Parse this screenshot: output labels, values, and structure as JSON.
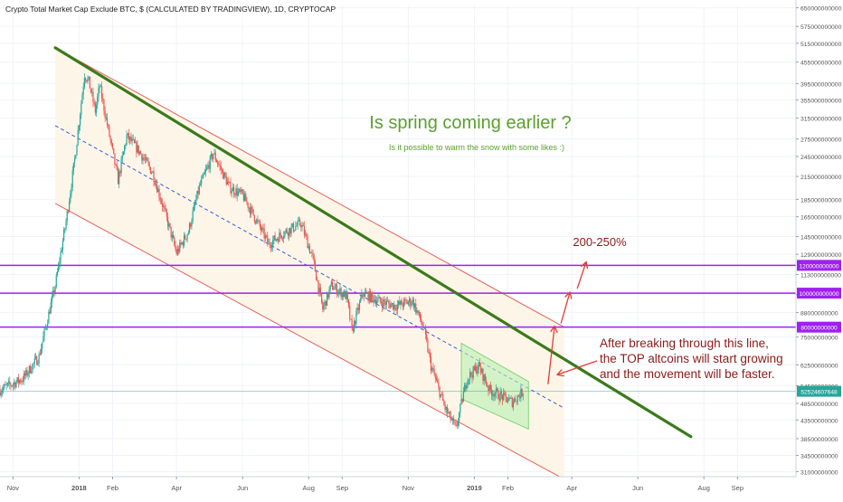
{
  "header": {
    "symbol_title": "Crypto Total Market Cap Exclude BTC, $ (CALCULATED BY TRADINGVIEW), 1D, CRYPTOCAP"
  },
  "annotations": {
    "headline": "Is spring coming earlier ?",
    "subline": "Is it possible to warm the snow with some likes :)",
    "target": "200-250%",
    "note_lines": [
      "After breaking through this line,",
      "the TOP altcoins will start growing",
      "and the movement will be faster."
    ]
  },
  "colors": {
    "up": "#26a69a",
    "down": "#ef5350",
    "trendline": "#3b7a1a",
    "level": "#a020f0",
    "channel": "#e8605b",
    "channel_fill": "#fdf5e4",
    "midline": "#3a5bd8",
    "headline": "#5aa02c",
    "note": "#8b1a1a",
    "arrow": "#e53935",
    "box_fill": "#b9f0b0",
    "price_badge": "#26a69a"
  },
  "chart_data": {
    "type": "candlestick",
    "y_scale": "log",
    "ylim": [
      30000000000,
      660000000000
    ],
    "y_ticks": [
      {
        "value": 650000000000,
        "label": "650000000000"
      },
      {
        "value": 575000000000,
        "label": "575000000000"
      },
      {
        "value": 515000000000,
        "label": "515000000000"
      },
      {
        "value": 455000000000,
        "label": "455000000000"
      },
      {
        "value": 395000000000,
        "label": "395000000000"
      },
      {
        "value": 355000000000,
        "label": "355000000000"
      },
      {
        "value": 315000000000,
        "label": "315000000000"
      },
      {
        "value": 275000000000,
        "label": "275000000000"
      },
      {
        "value": 245000000000,
        "label": "245000000000"
      },
      {
        "value": 215000000000,
        "label": "215000000000"
      },
      {
        "value": 185000000000,
        "label": "185000000000"
      },
      {
        "value": 165000000000,
        "label": "165000000000"
      },
      {
        "value": 145000000000,
        "label": "145000000000"
      },
      {
        "value": 129000000000,
        "label": "129000000000"
      },
      {
        "value": 113000000000,
        "label": "113000000000"
      },
      {
        "value": 99000000000,
        "label": "99000000000"
      },
      {
        "value": 88000000000,
        "label": "88000000000"
      },
      {
        "value": 75000000000,
        "label": "75000000000"
      },
      {
        "value": 62500000000,
        "label": "62500000000"
      },
      {
        "value": 54500000000,
        "label": "54500000000"
      },
      {
        "value": 48500000000,
        "label": "48500000000"
      },
      {
        "value": 43500000000,
        "label": "43500000000"
      },
      {
        "value": 38500000000,
        "label": "38500000000"
      },
      {
        "value": 34500000000,
        "label": "34500000000"
      },
      {
        "value": 31000000000,
        "label": "31000000000"
      }
    ],
    "x_ticks": [
      {
        "date": "2017-11-01",
        "label": "Nov"
      },
      {
        "date": "2018-01-01",
        "label": "2018"
      },
      {
        "date": "2018-02-01",
        "label": "Feb"
      },
      {
        "date": "2018-04-01",
        "label": "Apr"
      },
      {
        "date": "2018-06-01",
        "label": "Jun"
      },
      {
        "date": "2018-08-01",
        "label": "Aug"
      },
      {
        "date": "2018-09-01",
        "label": "Sep"
      },
      {
        "date": "2018-11-01",
        "label": "Nov"
      },
      {
        "date": "2019-01-01",
        "label": "2019"
      },
      {
        "date": "2019-02-01",
        "label": "Feb"
      },
      {
        "date": "2019-04-01",
        "label": "Apr"
      },
      {
        "date": "2019-06-01",
        "label": "Jun"
      },
      {
        "date": "2019-08-01",
        "label": "Aug"
      },
      {
        "date": "2019-09-01",
        "label": "Sep"
      }
    ],
    "xlim": [
      "2017-10-20",
      "2019-10-25"
    ],
    "price_path": [
      [
        "2017-10-20",
        53000000000
      ],
      [
        "2017-11-10",
        57000000000
      ],
      [
        "2017-11-25",
        66000000000
      ],
      [
        "2017-12-10",
        105000000000
      ],
      [
        "2017-12-20",
        160000000000
      ],
      [
        "2017-12-28",
        240000000000
      ],
      [
        "2018-01-06",
        420000000000
      ],
      [
        "2018-01-10",
        400000000000
      ],
      [
        "2018-01-16",
        330000000000
      ],
      [
        "2018-01-20",
        390000000000
      ],
      [
        "2018-02-06",
        210000000000
      ],
      [
        "2018-02-14",
        280000000000
      ],
      [
        "2018-02-25",
        255000000000
      ],
      [
        "2018-03-10",
        220000000000
      ],
      [
        "2018-03-20",
        175000000000
      ],
      [
        "2018-04-01",
        130000000000
      ],
      [
        "2018-04-12",
        150000000000
      ],
      [
        "2018-04-22",
        200000000000
      ],
      [
        "2018-05-05",
        250000000000
      ],
      [
        "2018-05-20",
        200000000000
      ],
      [
        "2018-06-01",
        190000000000
      ],
      [
        "2018-06-12",
        165000000000
      ],
      [
        "2018-06-25",
        138000000000
      ],
      [
        "2018-07-08",
        148000000000
      ],
      [
        "2018-07-25",
        158000000000
      ],
      [
        "2018-08-05",
        125000000000
      ],
      [
        "2018-08-14",
        90000000000
      ],
      [
        "2018-08-22",
        105000000000
      ],
      [
        "2018-09-05",
        98000000000
      ],
      [
        "2018-09-10",
        78000000000
      ],
      [
        "2018-09-20",
        100000000000
      ],
      [
        "2018-10-05",
        95000000000
      ],
      [
        "2018-10-20",
        92000000000
      ],
      [
        "2018-11-05",
        95000000000
      ],
      [
        "2018-11-15",
        80000000000
      ],
      [
        "2018-11-22",
        62000000000
      ],
      [
        "2018-12-05",
        47000000000
      ],
      [
        "2018-12-15",
        41000000000
      ],
      [
        "2018-12-25",
        57000000000
      ],
      [
        "2019-01-05",
        62000000000
      ],
      [
        "2019-01-15",
        53000000000
      ],
      [
        "2019-01-25",
        51000000000
      ],
      [
        "2019-02-05",
        49000000000
      ],
      [
        "2019-02-15",
        52500000000
      ]
    ],
    "last_price": {
      "value": 52524607648,
      "label": "52524607648"
    },
    "horizontal_levels": [
      {
        "value": 120000000000,
        "label": "120000000000"
      },
      {
        "value": 100000000000,
        "label": "100000000000"
      },
      {
        "value": 80000000000,
        "label": "80000000000"
      }
    ],
    "trendline": {
      "points": [
        [
          "2017-12-10",
          500000000000
        ],
        [
          "2019-07-20",
          39000000000
        ]
      ]
    },
    "channel": {
      "upper": [
        [
          "2017-12-10",
          500000000000
        ],
        [
          "2019-03-25",
          80000000000
        ]
      ],
      "lower": [
        [
          "2017-12-10",
          180000000000
        ],
        [
          "2019-03-25",
          29500000000
        ]
      ],
      "mid": [
        [
          "2017-12-10",
          300000000000
        ],
        [
          "2019-03-25",
          47000000000
        ]
      ]
    },
    "box_channel": {
      "upper": [
        [
          "2018-12-20",
          72000000000
        ],
        [
          "2019-02-20",
          56000000000
        ]
      ],
      "lower": [
        [
          "2018-12-20",
          50000000000
        ],
        [
          "2019-02-20",
          41000000000
        ]
      ]
    },
    "arrows": [
      [
        [
          "2019-03-10",
          55000000000
        ],
        [
          "2019-03-16",
          80000000000
        ]
      ],
      [
        [
          "2019-03-22",
          82000000000
        ],
        [
          "2019-03-30",
          100000000000
        ]
      ],
      [
        [
          "2019-04-06",
          103000000000
        ],
        [
          "2019-04-14",
          122000000000
        ]
      ]
    ]
  }
}
